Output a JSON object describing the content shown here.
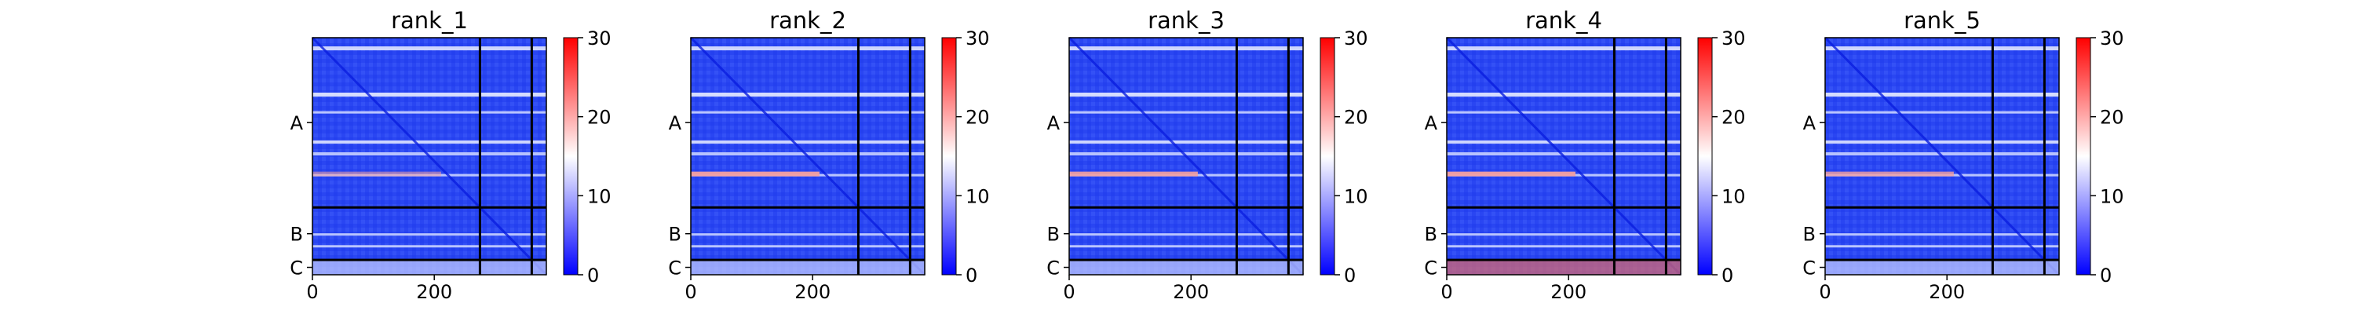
{
  "figure": {
    "background": "#ffffff"
  },
  "chart_data": [
    {
      "type": "heatmap",
      "title": "rank_1",
      "x_ticks": [
        0,
        200
      ],
      "y_tick_labels": [
        "A",
        "B",
        "C"
      ],
      "colorbar": {
        "min": 0,
        "max": 30,
        "ticks": [
          0,
          10,
          20,
          30
        ],
        "colormap": "bwr"
      },
      "n_residues": 384,
      "chain_breaks": [
        275,
        360
      ]
    },
    {
      "type": "heatmap",
      "title": "rank_2",
      "x_ticks": [
        0,
        200
      ],
      "y_tick_labels": [
        "A",
        "B",
        "C"
      ],
      "colorbar": {
        "min": 0,
        "max": 30,
        "ticks": [
          0,
          10,
          20,
          30
        ],
        "colormap": "bwr"
      },
      "n_residues": 384,
      "chain_breaks": [
        275,
        360
      ]
    },
    {
      "type": "heatmap",
      "title": "rank_3",
      "x_ticks": [
        0,
        200
      ],
      "y_tick_labels": [
        "A",
        "B",
        "C"
      ],
      "colorbar": {
        "min": 0,
        "max": 30,
        "ticks": [
          0,
          10,
          20,
          30
        ],
        "colormap": "bwr"
      },
      "n_residues": 384,
      "chain_breaks": [
        275,
        360
      ]
    },
    {
      "type": "heatmap",
      "title": "rank_4",
      "x_ticks": [
        0,
        200
      ],
      "y_tick_labels": [
        "A",
        "B",
        "C"
      ],
      "colorbar": {
        "min": 0,
        "max": 30,
        "ticks": [
          0,
          10,
          20,
          30
        ],
        "colormap": "bwr"
      },
      "n_residues": 384,
      "chain_breaks": [
        275,
        360
      ]
    },
    {
      "type": "heatmap",
      "title": "rank_5",
      "x_ticks": [
        0,
        200
      ],
      "y_tick_labels": [
        "A",
        "B",
        "C"
      ],
      "colorbar": {
        "min": 0,
        "max": 30,
        "ticks": [
          0,
          10,
          20,
          30
        ],
        "colormap": "bwr"
      },
      "n_residues": 384,
      "chain_breaks": [
        275,
        360
      ]
    }
  ]
}
